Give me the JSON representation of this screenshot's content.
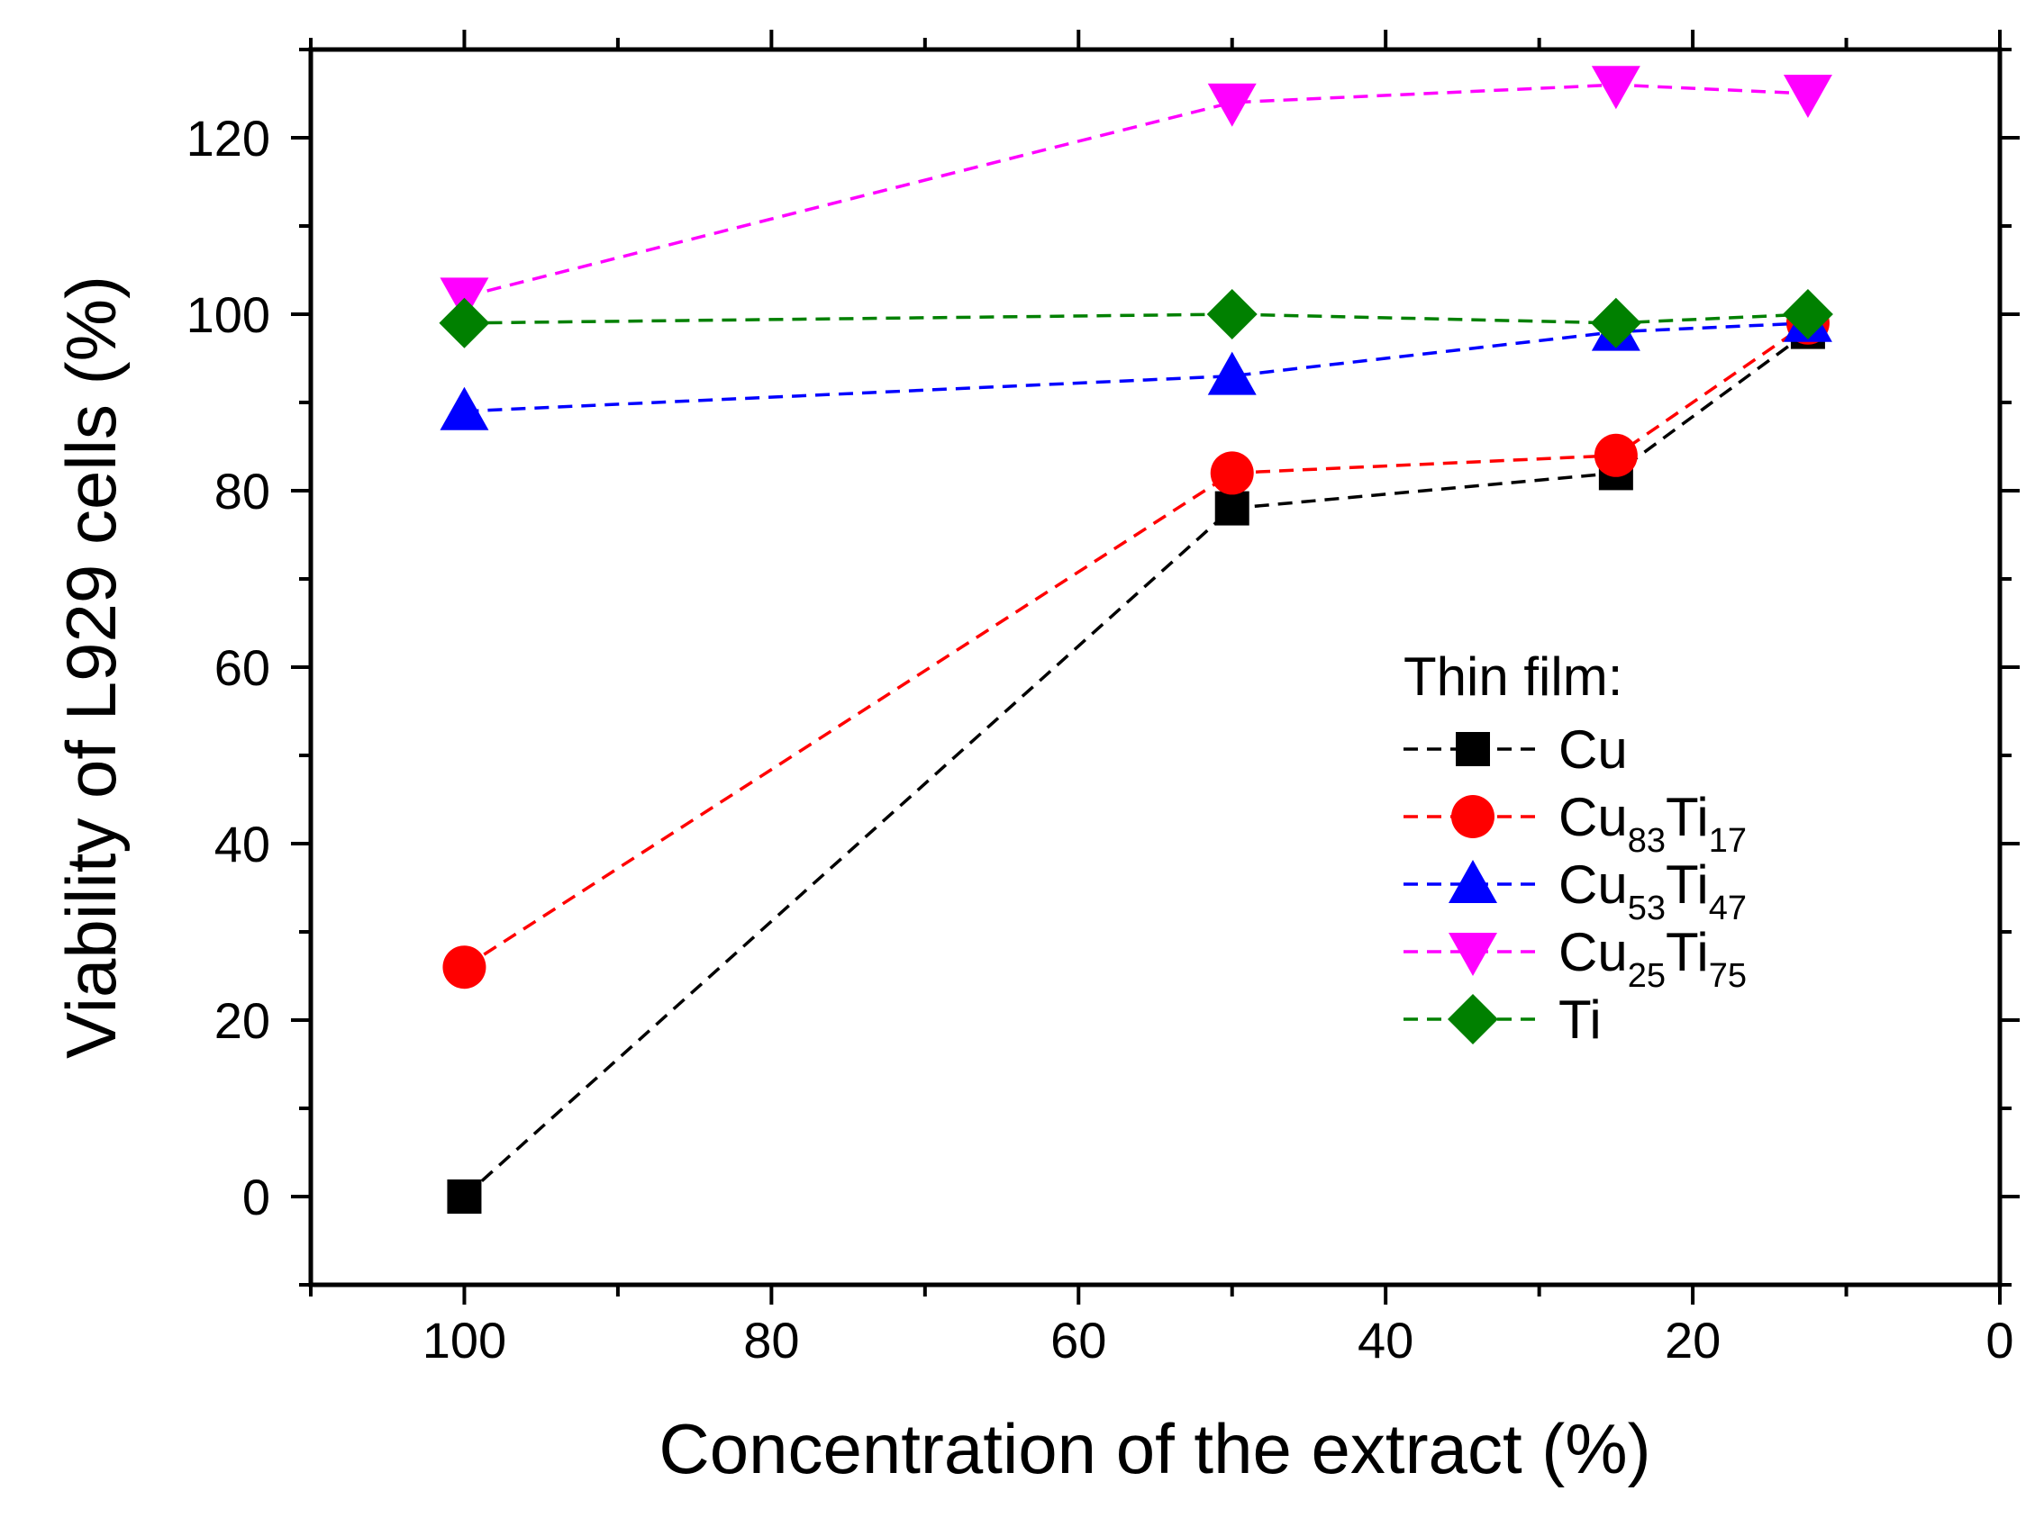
{
  "chart_data": {
    "type": "line",
    "title": "",
    "xlabel": "Concentration of the extract (%)",
    "ylabel": "Viability of L929 cells (%)",
    "xlim": [
      110,
      0
    ],
    "ylim": [
      -10,
      130
    ],
    "x_reversed": true,
    "grid": false,
    "line_style": "dashed",
    "x_ticks": [
      "100",
      "80",
      "60",
      "40",
      "20",
      "0"
    ],
    "y_ticks": [
      "0",
      "20",
      "40",
      "60",
      "80",
      "100",
      "120"
    ],
    "legend": {
      "title": "Thin film:",
      "placement": "center-right"
    },
    "x": [
      100,
      50,
      25,
      12.5
    ],
    "series": [
      {
        "name": "Cu",
        "name_base": "Cu",
        "name_parts": [],
        "marker": "square",
        "color": "#000000",
        "values": [
          0,
          78,
          82,
          98
        ]
      },
      {
        "name": "Cu83Ti17",
        "name_base": "Cu",
        "name_parts": [
          "83",
          "Ti",
          "17"
        ],
        "marker": "circle",
        "color": "#ff0000",
        "values": [
          26,
          82,
          84,
          99
        ]
      },
      {
        "name": "Cu53Ti47",
        "name_base": "Cu",
        "name_parts": [
          "53",
          "Ti",
          "47"
        ],
        "marker": "triangle-up",
        "color": "#0000ff",
        "values": [
          89,
          93,
          98,
          99
        ]
      },
      {
        "name": "Cu25Ti75",
        "name_base": "Cu",
        "name_parts": [
          "25",
          "Ti",
          "75"
        ],
        "marker": "triangle-down",
        "color": "#ff00ff",
        "values": [
          102,
          124,
          126,
          125
        ]
      },
      {
        "name": "Ti",
        "name_base": "Ti",
        "name_parts": [],
        "marker": "diamond",
        "color": "#008000",
        "values": [
          99,
          100,
          99,
          100
        ]
      }
    ]
  }
}
